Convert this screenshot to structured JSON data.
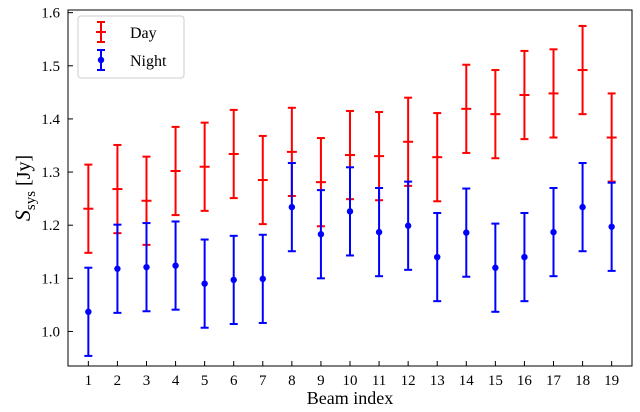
{
  "chart_data": {
    "type": "scatter",
    "xlabel": "Beam index",
    "ylabel_main": "S",
    "ylabel_sub": "sys",
    "ylabel_unit": "[Jy]",
    "x": [
      1,
      2,
      3,
      4,
      5,
      6,
      7,
      8,
      9,
      10,
      11,
      12,
      13,
      14,
      15,
      16,
      17,
      18,
      19
    ],
    "xlim": [
      0.3,
      19.7
    ],
    "ylim": [
      0.935,
      1.605
    ],
    "yticks": [
      1.0,
      1.1,
      1.2,
      1.3,
      1.4,
      1.5,
      1.6
    ],
    "ytick_labels": [
      "1.0",
      "1.1",
      "1.2",
      "1.3",
      "1.4",
      "1.5",
      "1.6"
    ],
    "xtick_labels": [
      "1",
      "2",
      "3",
      "4",
      "5",
      "6",
      "7",
      "8",
      "9",
      "10",
      "11",
      "12",
      "13",
      "14",
      "15",
      "16",
      "17",
      "18",
      "19"
    ],
    "grid": false,
    "legend_position": "top-left",
    "series": [
      {
        "name": "Day",
        "color": "#ff0000",
        "marker": "tick",
        "values": [
          1.231,
          1.268,
          1.246,
          1.302,
          1.31,
          1.334,
          1.285,
          1.338,
          1.281,
          1.332,
          1.33,
          1.357,
          1.328,
          1.419,
          1.409,
          1.445,
          1.448,
          1.492,
          1.365
        ],
        "errors": [
          0.083,
          0.083,
          0.083,
          0.083,
          0.083,
          0.083,
          0.083,
          0.083,
          0.083,
          0.083,
          0.083,
          0.083,
          0.083,
          0.083,
          0.083,
          0.083,
          0.083,
          0.083,
          0.083
        ]
      },
      {
        "name": "Night",
        "color": "#0000ff",
        "marker": "dot",
        "values": [
          1.037,
          1.118,
          1.121,
          1.124,
          1.09,
          1.097,
          1.099,
          1.234,
          1.183,
          1.226,
          1.187,
          1.199,
          1.14,
          1.186,
          1.12,
          1.14,
          1.187,
          1.234,
          1.197
        ],
        "errors": [
          0.083,
          0.083,
          0.083,
          0.083,
          0.083,
          0.083,
          0.083,
          0.083,
          0.083,
          0.083,
          0.083,
          0.083,
          0.083,
          0.083,
          0.083,
          0.083,
          0.083,
          0.083,
          0.083
        ]
      }
    ]
  }
}
